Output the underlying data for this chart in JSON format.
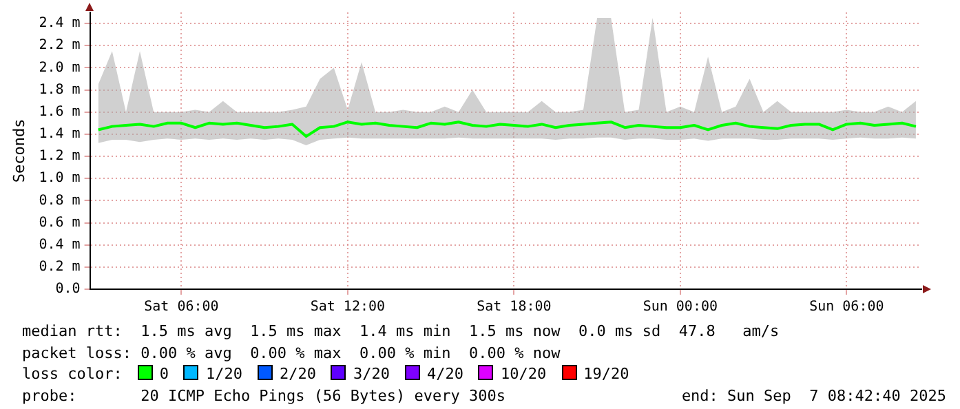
{
  "chart_data": {
    "type": "line",
    "ylabel": "Seconds",
    "legend": "bottom",
    "legend_title": "loss color:",
    "grid": true,
    "marker": "none",
    "line_style": "solid",
    "xlim": [
      "2025-09-06T02:42",
      "2025-09-07T08:42"
    ],
    "xticks": [
      {
        "value": "2025-09-06T06:00",
        "label": "Sat 06:00"
      },
      {
        "value": "2025-09-06T12:00",
        "label": "Sat 12:00"
      },
      {
        "value": "2025-09-06T18:00",
        "label": "Sat 18:00"
      },
      {
        "value": "2025-09-07T00:00",
        "label": "Sun 00:00"
      },
      {
        "value": "2025-09-07T06:00",
        "label": "Sun 06:00"
      }
    ],
    "ylim": [
      0,
      2.5
    ],
    "yticks": [
      {
        "value": 0,
        "label": "0.0"
      },
      {
        "value": 0.2,
        "label": "0.2 m"
      },
      {
        "value": 0.4,
        "label": "0.4 m"
      },
      {
        "value": 0.6,
        "label": "0.6 m"
      },
      {
        "value": 0.8,
        "label": "0.8 m"
      },
      {
        "value": 1.0,
        "label": "1.0 m"
      },
      {
        "value": 1.2,
        "label": "1.2 m"
      },
      {
        "value": 1.4,
        "label": "1.4 m"
      },
      {
        "value": 1.6,
        "label": "1.6 m"
      },
      {
        "value": 1.8,
        "label": "1.8 m"
      },
      {
        "value": 2.0,
        "label": "2.0 m"
      },
      {
        "value": 2.2,
        "label": "2.2 m"
      },
      {
        "value": 2.4,
        "label": "2.4 m"
      }
    ],
    "x": [
      "2025-09-06T03:00",
      "2025-09-06T03:30",
      "2025-09-06T04:00",
      "2025-09-06T04:30",
      "2025-09-06T05:00",
      "2025-09-06T05:30",
      "2025-09-06T06:00",
      "2025-09-06T06:30",
      "2025-09-06T07:00",
      "2025-09-06T07:30",
      "2025-09-06T08:00",
      "2025-09-06T08:30",
      "2025-09-06T09:00",
      "2025-09-06T09:30",
      "2025-09-06T10:00",
      "2025-09-06T10:30",
      "2025-09-06T11:00",
      "2025-09-06T11:30",
      "2025-09-06T12:00",
      "2025-09-06T12:30",
      "2025-09-06T13:00",
      "2025-09-06T13:30",
      "2025-09-06T14:00",
      "2025-09-06T14:30",
      "2025-09-06T15:00",
      "2025-09-06T15:30",
      "2025-09-06T16:00",
      "2025-09-06T16:30",
      "2025-09-06T17:00",
      "2025-09-06T17:30",
      "2025-09-06T18:00",
      "2025-09-06T18:30",
      "2025-09-06T19:00",
      "2025-09-06T19:30",
      "2025-09-06T20:00",
      "2025-09-06T20:30",
      "2025-09-06T21:00",
      "2025-09-06T21:30",
      "2025-09-06T22:00",
      "2025-09-06T22:30",
      "2025-09-06T23:00",
      "2025-09-06T23:30",
      "2025-09-07T00:00",
      "2025-09-07T00:30",
      "2025-09-07T01:00",
      "2025-09-07T01:30",
      "2025-09-07T02:00",
      "2025-09-07T02:30",
      "2025-09-07T03:00",
      "2025-09-07T03:30",
      "2025-09-07T04:00",
      "2025-09-07T04:30",
      "2025-09-07T05:00",
      "2025-09-07T05:30",
      "2025-09-07T06:00",
      "2025-09-07T06:30",
      "2025-09-07T07:00",
      "2025-09-07T07:30",
      "2025-09-07T08:00",
      "2025-09-07T08:30"
    ],
    "series": [
      {
        "name": "0",
        "color": "#00ff00",
        "values": [
          1.44,
          1.47,
          1.48,
          1.49,
          1.47,
          1.5,
          1.5,
          1.46,
          1.5,
          1.49,
          1.5,
          1.48,
          1.46,
          1.47,
          1.49,
          1.38,
          1.46,
          1.47,
          1.51,
          1.49,
          1.5,
          1.48,
          1.47,
          1.46,
          1.5,
          1.49,
          1.51,
          1.48,
          1.47,
          1.49,
          1.48,
          1.47,
          1.49,
          1.46,
          1.48,
          1.49,
          1.5,
          1.51,
          1.46,
          1.48,
          1.47,
          1.46,
          1.46,
          1.48,
          1.44,
          1.48,
          1.5,
          1.47,
          1.46,
          1.45,
          1.48,
          1.49,
          1.49,
          1.44,
          1.49,
          1.5,
          1.48,
          1.49,
          1.5,
          1.47
        ],
        "lower": [
          1.32,
          1.35,
          1.35,
          1.33,
          1.35,
          1.36,
          1.35,
          1.36,
          1.35,
          1.36,
          1.35,
          1.36,
          1.35,
          1.36,
          1.35,
          1.3,
          1.35,
          1.36,
          1.37,
          1.36,
          1.36,
          1.36,
          1.36,
          1.36,
          1.36,
          1.36,
          1.37,
          1.36,
          1.36,
          1.36,
          1.36,
          1.36,
          1.36,
          1.35,
          1.36,
          1.36,
          1.37,
          1.37,
          1.35,
          1.36,
          1.36,
          1.35,
          1.35,
          1.36,
          1.34,
          1.36,
          1.36,
          1.36,
          1.35,
          1.35,
          1.36,
          1.36,
          1.36,
          1.35,
          1.36,
          1.37,
          1.36,
          1.36,
          1.37,
          1.36
        ],
        "upper": [
          1.85,
          2.15,
          1.6,
          2.15,
          1.6,
          1.6,
          1.6,
          1.62,
          1.6,
          1.7,
          1.6,
          1.6,
          1.6,
          1.6,
          1.62,
          1.65,
          1.9,
          2.0,
          1.62,
          2.05,
          1.6,
          1.6,
          1.62,
          1.6,
          1.6,
          1.65,
          1.6,
          1.8,
          1.6,
          1.6,
          1.6,
          1.6,
          1.7,
          1.6,
          1.6,
          1.62,
          2.45,
          2.45,
          1.6,
          1.62,
          2.45,
          1.6,
          1.65,
          1.6,
          2.1,
          1.6,
          1.65,
          1.9,
          1.6,
          1.7,
          1.6,
          1.6,
          1.6,
          1.6,
          1.62,
          1.6,
          1.6,
          1.65,
          1.6,
          1.7
        ]
      },
      {
        "name": "1/20",
        "color": "#00b8ff",
        "values": [
          null,
          null,
          null,
          null,
          null,
          null,
          null,
          null,
          null,
          null,
          null,
          null,
          null,
          null,
          null,
          null,
          null,
          null,
          null,
          null,
          null,
          null,
          null,
          null,
          null,
          null,
          null,
          null,
          null,
          null,
          null,
          null,
          null,
          null,
          null,
          null,
          null,
          null,
          null,
          null,
          null,
          null,
          null,
          null,
          null,
          null,
          null,
          null,
          null,
          null,
          null,
          null,
          null,
          null,
          null,
          null,
          null,
          null,
          null,
          null
        ]
      },
      {
        "name": "2/20",
        "color": "#0059ff",
        "values": [
          null,
          null,
          null,
          null,
          null,
          null,
          null,
          null,
          null,
          null,
          null,
          null,
          null,
          null,
          null,
          null,
          null,
          null,
          null,
          null,
          null,
          null,
          null,
          null,
          null,
          null,
          null,
          null,
          null,
          null,
          null,
          null,
          null,
          null,
          null,
          null,
          null,
          null,
          null,
          null,
          null,
          null,
          null,
          null,
          null,
          null,
          null,
          null,
          null,
          null,
          null,
          null,
          null,
          null,
          null,
          null,
          null,
          null,
          null,
          null
        ]
      },
      {
        "name": "3/20",
        "color": "#5e00ff",
        "values": [
          null,
          null,
          null,
          null,
          null,
          null,
          null,
          null,
          null,
          null,
          null,
          null,
          null,
          null,
          null,
          null,
          null,
          null,
          null,
          null,
          null,
          null,
          null,
          null,
          null,
          null,
          null,
          null,
          null,
          null,
          null,
          null,
          null,
          null,
          null,
          null,
          null,
          null,
          null,
          null,
          null,
          null,
          null,
          null,
          null,
          null,
          null,
          null,
          null,
          null,
          null,
          null,
          null,
          null,
          null,
          null,
          null,
          null,
          null,
          null
        ]
      },
      {
        "name": "4/20",
        "color": "#7e00ff",
        "values": [
          null,
          null,
          null,
          null,
          null,
          null,
          null,
          null,
          null,
          null,
          null,
          null,
          null,
          null,
          null,
          null,
          null,
          null,
          null,
          null,
          null,
          null,
          null,
          null,
          null,
          null,
          null,
          null,
          null,
          null,
          null,
          null,
          null,
          null,
          null,
          null,
          null,
          null,
          null,
          null,
          null,
          null,
          null,
          null,
          null,
          null,
          null,
          null,
          null,
          null,
          null,
          null,
          null,
          null,
          null,
          null,
          null,
          null,
          null,
          null
        ]
      },
      {
        "name": "10/20",
        "color": "#dd00ff",
        "values": [
          null,
          null,
          null,
          null,
          null,
          null,
          null,
          null,
          null,
          null,
          null,
          null,
          null,
          null,
          null,
          null,
          null,
          null,
          null,
          null,
          null,
          null,
          null,
          null,
          null,
          null,
          null,
          null,
          null,
          null,
          null,
          null,
          null,
          null,
          null,
          null,
          null,
          null,
          null,
          null,
          null,
          null,
          null,
          null,
          null,
          null,
          null,
          null,
          null,
          null,
          null,
          null,
          null,
          null,
          null,
          null,
          null,
          null,
          null,
          null
        ]
      },
      {
        "name": "19/20",
        "color": "#ff0000",
        "values": [
          null,
          null,
          null,
          null,
          null,
          null,
          null,
          null,
          null,
          null,
          null,
          null,
          null,
          null,
          null,
          null,
          null,
          null,
          null,
          null,
          null,
          null,
          null,
          null,
          null,
          null,
          null,
          null,
          null,
          null,
          null,
          null,
          null,
          null,
          null,
          null,
          null,
          null,
          null,
          null,
          null,
          null,
          null,
          null,
          null,
          null,
          null,
          null,
          null,
          null,
          null,
          null,
          null,
          null,
          null,
          null,
          null,
          null,
          null,
          null
        ]
      }
    ],
    "annotations": [
      "median rtt:  1.5 ms avg  1.5 ms max  1.4 ms min  1.5 ms now  0.0 ms sd  47.8   am/s",
      "packet loss: 0.00 % avg  0.00 % max  0.00 % min  0.00 % now",
      "probe:       20 ICMP Echo Pings (56 Bytes) every 300s",
      "end: Sun Sep  7 08:42:40 2025"
    ]
  }
}
